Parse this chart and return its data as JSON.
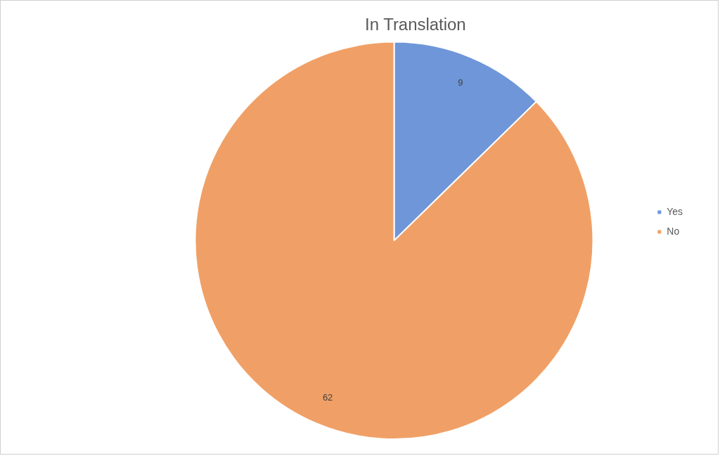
{
  "chart_data": {
    "type": "pie",
    "title": "In Translation",
    "categories": [
      "Yes",
      "No"
    ],
    "values": [
      9,
      62
    ],
    "colors": [
      "#6f96d8",
      "#f0a066"
    ],
    "data_labels": true,
    "legend": "right"
  }
}
